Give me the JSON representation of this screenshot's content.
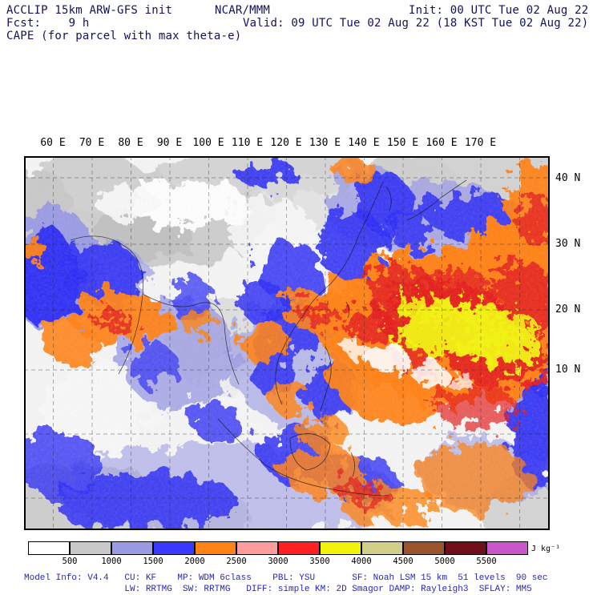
{
  "header": {
    "model_title": "ACCLIP 15km ARW-GFS init",
    "center": "NCAR/MMM",
    "init": "Init: 00 UTC Tue 02 Aug 22",
    "fcst": "Fcst:    9 h",
    "valid": "Valid: 09 UTC Tue 02 Aug 22 (18 KST Tue 02 Aug 22)",
    "field": "CAPE (for parcel with max theta-e)"
  },
  "map": {
    "lon_labels": [
      "60 E",
      "70 E",
      "80 E",
      "90 E",
      "100 E",
      "110 E",
      "120 E",
      "130 E",
      "140 E",
      "150 E",
      "160 E",
      "170 E"
    ],
    "lat_labels": [
      "40 N",
      "30 N",
      "20 N",
      "10 N"
    ]
  },
  "colorbar": {
    "labels": [
      "500",
      "1000",
      "1500",
      "2000",
      "2500",
      "3000",
      "3500",
      "4000",
      "4500",
      "5000",
      "5500"
    ],
    "unit": "J kg⁻¹",
    "colors": [
      "#ffffff",
      "#c9c9c9",
      "#9b9be4",
      "#3939ff",
      "#ff8214",
      "#ff9d9d",
      "#ff2121",
      "#f2f20a",
      "#cfcf8a",
      "#99542b",
      "#700f1a",
      "#c957c9"
    ]
  },
  "footer": {
    "line1": "Model Info: V4.4   CU: KF    MP: WDM 6class    PBL: YSU       SF: Noah LSM 15 km  51 levels  90 sec",
    "line2": "                   LW: RRTMG  SW: RRTMG   DIFF: simple KM: 2D Smagor DAMP: Rayleigh3  SFLAY: MM5"
  }
}
